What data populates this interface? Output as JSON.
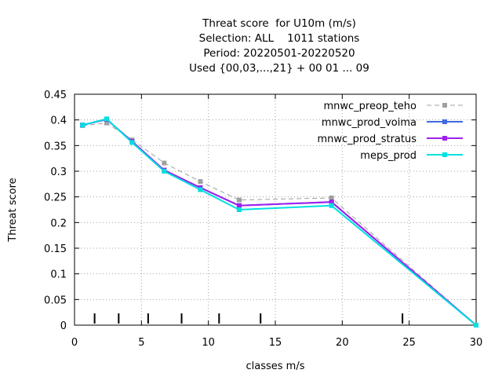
{
  "chart_data": {
    "type": "line",
    "title_lines": [
      "Threat score  for U10m (m/s)",
      "Selection: ALL    1011 stations",
      "Period: 20220501-20220520",
      "Used {00,03,...,21} + 00 01 ... 09"
    ],
    "xlabel": "classes m/s",
    "ylabel": "Threat score",
    "xlim": [
      0,
      30
    ],
    "ylim": [
      0,
      0.45
    ],
    "x_ticks": [
      0,
      5,
      10,
      15,
      20,
      25,
      30
    ],
    "x_tick_labels": [
      "0",
      "5",
      "10",
      "15",
      "20",
      "25",
      "30"
    ],
    "y_ticks": [
      0,
      0.05,
      0.1,
      0.15,
      0.2,
      0.25,
      0.3,
      0.35,
      0.4,
      0.45
    ],
    "y_tick_labels": [
      "0",
      "0.05",
      "0.1",
      "0.15",
      "0.2",
      "0.25",
      "0.3",
      "0.35",
      "0.4",
      "0.45"
    ],
    "grid": true,
    "legend_position": "top-right",
    "class_markers": [
      1.5,
      3.3,
      5.5,
      8.0,
      10.8,
      13.9,
      24.5
    ],
    "series": [
      {
        "name": "mnwc_preop_teho",
        "color": "#a0a0a0",
        "dashed": true,
        "x": [
          0.6,
          2.4,
          4.3,
          6.7,
          9.4,
          12.3,
          19.2,
          30
        ],
        "y": [
          0.389,
          0.394,
          0.361,
          0.316,
          0.28,
          0.244,
          0.248,
          0.0
        ]
      },
      {
        "name": "mnwc_prod_voima",
        "color": "#4169e1",
        "dashed": false,
        "x": [
          0.6,
          2.4,
          4.3,
          6.7,
          9.4,
          12.3,
          19.2,
          30
        ],
        "y": [
          0.39,
          0.401,
          0.358,
          0.302,
          0.268,
          0.233,
          0.24,
          0.0
        ]
      },
      {
        "name": "mnwc_prod_stratus",
        "color": "#a020f0",
        "dashed": false,
        "x": [
          0.6,
          2.4,
          4.3,
          6.7,
          9.4,
          12.3,
          19.2,
          30
        ],
        "y": [
          0.39,
          0.401,
          0.358,
          0.302,
          0.268,
          0.233,
          0.24,
          0.0
        ]
      },
      {
        "name": "meps_prod",
        "color": "#00e0e0",
        "dashed": false,
        "x": [
          0.6,
          2.4,
          4.3,
          6.7,
          9.4,
          12.3,
          19.2,
          30
        ],
        "y": [
          0.39,
          0.402,
          0.356,
          0.3,
          0.264,
          0.225,
          0.233,
          0.0
        ]
      }
    ]
  }
}
